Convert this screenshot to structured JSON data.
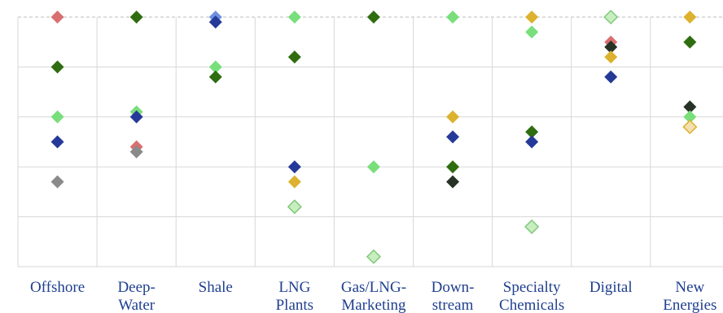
{
  "chart_data": {
    "type": "scatter",
    "title": "",
    "xlabel": "",
    "ylabel": "",
    "ylim": [
      0,
      5
    ],
    "grid": true,
    "legend": "none",
    "categories": [
      [
        "Offshore"
      ],
      [
        "Deep-",
        "Water"
      ],
      [
        "Shale"
      ],
      [
        "LNG",
        "Plants"
      ],
      [
        "Gas/LNG-",
        "Marketing"
      ],
      [
        "Down-",
        "stream"
      ],
      [
        "Specialty",
        "Chemicals"
      ],
      [
        "Digital"
      ],
      [
        "New",
        "Energies"
      ]
    ],
    "colors": {
      "red": "#d96f6f",
      "dark_green": "#2f6d10",
      "light_green": "#78df7a",
      "navy": "#253a98",
      "gray": "#8a8a8a",
      "gold": "#dcb22e",
      "black": "#263326",
      "pale_green": "#c8eec0",
      "pale_gold": "#f3dfb0",
      "blue_light": "#6f8fe0",
      "outline": "#7fc97a",
      "axis_blue": "#1f3f8f",
      "grid": "#d7d7d7",
      "dash": "#bdbdbd"
    },
    "points": [
      {
        "category": 0,
        "value": 5.0,
        "color": "red"
      },
      {
        "category": 0,
        "value": 4.0,
        "color": "dark_green"
      },
      {
        "category": 0,
        "value": 3.0,
        "color": "light_green"
      },
      {
        "category": 0,
        "value": 2.5,
        "color": "navy"
      },
      {
        "category": 0,
        "value": 1.7,
        "color": "gray"
      },
      {
        "category": 1,
        "value": 5.0,
        "color": "dark_green"
      },
      {
        "category": 1,
        "value": 3.1,
        "color": "light_green"
      },
      {
        "category": 1,
        "value": 3.0,
        "color": "navy"
      },
      {
        "category": 1,
        "value": 2.4,
        "color": "red"
      },
      {
        "category": 1,
        "value": 2.3,
        "color": "gray"
      },
      {
        "category": 2,
        "value": 5.0,
        "color": "blue_light"
      },
      {
        "category": 2,
        "value": 4.9,
        "color": "navy"
      },
      {
        "category": 2,
        "value": 4.0,
        "color": "light_green"
      },
      {
        "category": 2,
        "value": 3.8,
        "color": "dark_green"
      },
      {
        "category": 3,
        "value": 5.0,
        "color": "light_green"
      },
      {
        "category": 3,
        "value": 4.2,
        "color": "dark_green"
      },
      {
        "category": 3,
        "value": 2.0,
        "color": "navy"
      },
      {
        "category": 3,
        "value": 1.7,
        "color": "gold"
      },
      {
        "category": 3,
        "value": 1.2,
        "color": "pale_green",
        "outline": "outline"
      },
      {
        "category": 4,
        "value": 5.0,
        "color": "dark_green"
      },
      {
        "category": 4,
        "value": 2.0,
        "color": "light_green"
      },
      {
        "category": 4,
        "value": 0.2,
        "color": "pale_green",
        "outline": "outline"
      },
      {
        "category": 5,
        "value": 5.0,
        "color": "light_green"
      },
      {
        "category": 5,
        "value": 3.0,
        "color": "gold"
      },
      {
        "category": 5,
        "value": 2.6,
        "color": "navy"
      },
      {
        "category": 5,
        "value": 2.0,
        "color": "dark_green"
      },
      {
        "category": 5,
        "value": 1.7,
        "color": "black"
      },
      {
        "category": 6,
        "value": 5.0,
        "color": "gold"
      },
      {
        "category": 6,
        "value": 4.7,
        "color": "light_green"
      },
      {
        "category": 6,
        "value": 2.7,
        "color": "dark_green"
      },
      {
        "category": 6,
        "value": 2.5,
        "color": "navy"
      },
      {
        "category": 6,
        "value": 0.8,
        "color": "pale_green",
        "outline": "outline"
      },
      {
        "category": 7,
        "value": 5.0,
        "color": "pale_green",
        "outline": "outline"
      },
      {
        "category": 7,
        "value": 4.5,
        "color": "red"
      },
      {
        "category": 7,
        "value": 4.4,
        "color": "black"
      },
      {
        "category": 7,
        "value": 4.2,
        "color": "gold"
      },
      {
        "category": 7,
        "value": 3.8,
        "color": "navy"
      },
      {
        "category": 8,
        "value": 5.0,
        "color": "gold"
      },
      {
        "category": 8,
        "value": 4.5,
        "color": "dark_green"
      },
      {
        "category": 8,
        "value": 3.2,
        "color": "black"
      },
      {
        "category": 8,
        "value": 3.0,
        "color": "light_green"
      },
      {
        "category": 8,
        "value": 2.8,
        "color": "pale_gold",
        "outline": "gold"
      }
    ]
  }
}
